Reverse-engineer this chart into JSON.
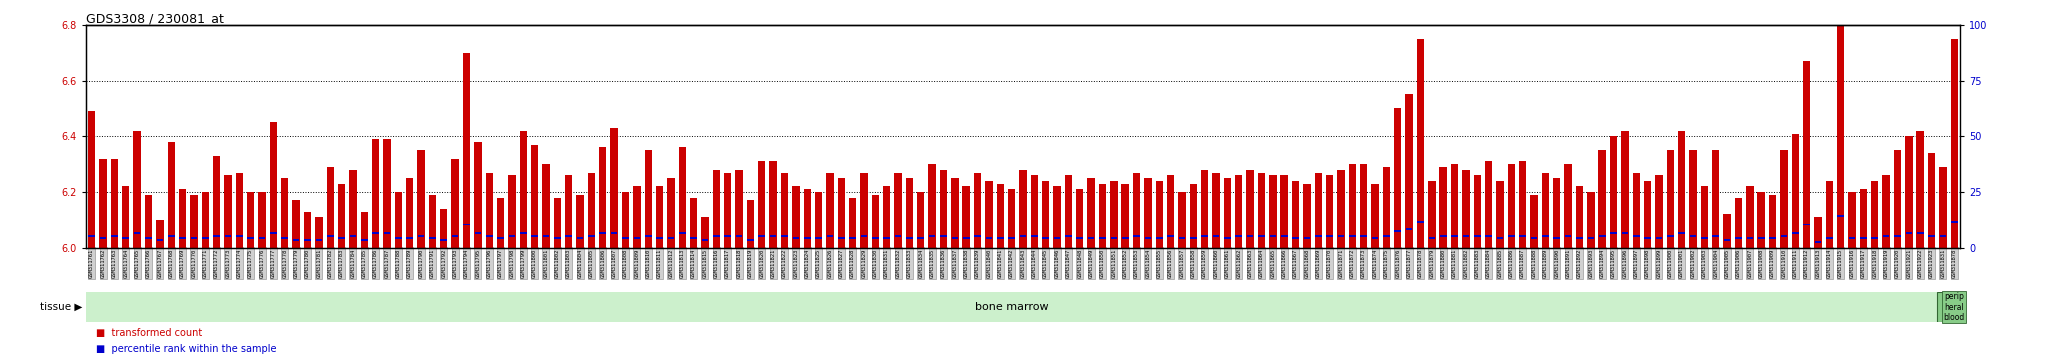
{
  "title": "GDS3308 / 230081_at",
  "ylim_left": [
    6.0,
    6.8
  ],
  "ylim_right": [
    0,
    100
  ],
  "yticks_left": [
    6.0,
    6.2,
    6.4,
    6.6,
    6.8
  ],
  "yticks_right": [
    0,
    25,
    50,
    75,
    100
  ],
  "bar_color": "#cc0000",
  "percentile_color": "#0000cc",
  "label_bg_color": "#d0d0d0",
  "label_edge_color": "#888888",
  "tissue_bm_color": "#ccf0cc",
  "tissue_pb_color": "#88cc88",
  "tissue_pb_edge": "#336633",
  "legend_tc_color": "#cc0000",
  "legend_pr_color": "#0000cc",
  "tissue_label_bm": "bone marrow",
  "tissue_label_pb": "perip\nheral\nblood",
  "tissue_text_label": "tissue",
  "background_color": "#ffffff",
  "grid_color": "#000000",
  "spine_color": "#000000",
  "samples": [
    "GSM311761",
    "GSM311762",
    "GSM311763",
    "GSM311764",
    "GSM311765",
    "GSM311766",
    "GSM311767",
    "GSM311768",
    "GSM311769",
    "GSM311770",
    "GSM311771",
    "GSM311772",
    "GSM311773",
    "GSM311774",
    "GSM311775",
    "GSM311776",
    "GSM311777",
    "GSM311778",
    "GSM311779",
    "GSM311780",
    "GSM311781",
    "GSM311782",
    "GSM311783",
    "GSM311784",
    "GSM311785",
    "GSM311786",
    "GSM311787",
    "GSM311788",
    "GSM311789",
    "GSM311790",
    "GSM311791",
    "GSM311792",
    "GSM311793",
    "GSM311794",
    "GSM311795",
    "GSM311796",
    "GSM311797",
    "GSM311798",
    "GSM311799",
    "GSM311800",
    "GSM311801",
    "GSM311802",
    "GSM311803",
    "GSM311804",
    "GSM311805",
    "GSM311806",
    "GSM311807",
    "GSM311808",
    "GSM311809",
    "GSM311810",
    "GSM311811",
    "GSM311812",
    "GSM311813",
    "GSM311814",
    "GSM311815",
    "GSM311816",
    "GSM311817",
    "GSM311818",
    "GSM311819",
    "GSM311820",
    "GSM311821",
    "GSM311822",
    "GSM311823",
    "GSM311824",
    "GSM311825",
    "GSM311826",
    "GSM311827",
    "GSM311828",
    "GSM311829",
    "GSM311830",
    "GSM311831",
    "GSM311832",
    "GSM311833",
    "GSM311834",
    "GSM311835",
    "GSM311836",
    "GSM311837",
    "GSM311838",
    "GSM311839",
    "GSM311840",
    "GSM311841",
    "GSM311842",
    "GSM311843",
    "GSM311844",
    "GSM311845",
    "GSM311846",
    "GSM311847",
    "GSM311848",
    "GSM311849",
    "GSM311850",
    "GSM311851",
    "GSM311852",
    "GSM311853",
    "GSM311854",
    "GSM311855",
    "GSM311856",
    "GSM311857",
    "GSM311858",
    "GSM311859",
    "GSM311860",
    "GSM311861",
    "GSM311862",
    "GSM311863",
    "GSM311864",
    "GSM311865",
    "GSM311866",
    "GSM311867",
    "GSM311868",
    "GSM311869",
    "GSM311870",
    "GSM311871",
    "GSM311872",
    "GSM311873",
    "GSM311874",
    "GSM311875",
    "GSM311876",
    "GSM311877",
    "GSM311878",
    "GSM311879",
    "GSM311880",
    "GSM311881",
    "GSM311882",
    "GSM311883",
    "GSM311884",
    "GSM311885",
    "GSM311886",
    "GSM311887",
    "GSM311888",
    "GSM311889",
    "GSM311890",
    "GSM311891",
    "GSM311892",
    "GSM311893",
    "GSM311894",
    "GSM311895",
    "GSM311896",
    "GSM311897",
    "GSM311898",
    "GSM311899",
    "GSM311900",
    "GSM311901",
    "GSM311902",
    "GSM311903",
    "GSM311904",
    "GSM311905",
    "GSM311906",
    "GSM311907",
    "GSM311908",
    "GSM311909",
    "GSM311910",
    "GSM311911",
    "GSM311912",
    "GSM311913",
    "GSM311914",
    "GSM311915",
    "GSM311916",
    "GSM311917",
    "GSM311918",
    "GSM311919",
    "GSM311920",
    "GSM311921",
    "GSM311922",
    "GSM311923",
    "GSM311831",
    "GSM311878"
  ],
  "transformed_values": [
    6.49,
    6.32,
    6.32,
    6.22,
    6.42,
    6.19,
    6.1,
    6.38,
    6.21,
    6.19,
    6.2,
    6.33,
    6.26,
    6.27,
    6.2,
    6.2,
    6.45,
    6.25,
    6.17,
    6.13,
    6.11,
    6.29,
    6.23,
    6.28,
    6.13,
    6.39,
    6.39,
    6.2,
    6.25,
    6.35,
    6.19,
    6.14,
    6.32,
    6.7,
    6.38,
    6.27,
    6.18,
    6.26,
    6.42,
    6.37,
    6.3,
    6.18,
    6.26,
    6.19,
    6.27,
    6.36,
    6.43,
    6.2,
    6.22,
    6.35,
    6.22,
    6.25,
    6.36,
    6.18,
    6.11,
    6.28,
    6.27,
    6.28,
    6.17,
    6.31,
    6.31,
    6.27,
    6.22,
    6.21,
    6.2,
    6.27,
    6.25,
    6.18,
    6.27,
    6.19,
    6.22,
    6.27,
    6.25,
    6.2,
    6.3,
    6.28,
    6.25,
    6.22,
    6.27,
    6.24,
    6.23,
    6.21,
    6.28,
    6.26,
    6.24,
    6.22,
    6.26,
    6.21,
    6.25,
    6.23,
    6.24,
    6.23,
    6.27,
    6.25,
    6.24,
    6.26,
    6.2,
    6.23,
    6.28,
    6.27,
    6.25,
    6.26,
    6.28,
    6.27,
    6.26,
    6.26,
    6.24,
    6.23,
    6.27,
    6.26,
    6.28,
    6.3,
    6.3,
    6.23,
    6.29,
    6.5,
    6.55,
    6.75,
    6.24,
    6.29,
    6.3,
    6.28,
    6.26,
    6.31,
    6.24,
    6.3,
    6.31,
    6.19,
    6.27,
    6.25,
    6.3,
    6.22,
    6.2,
    6.35,
    6.4,
    6.42,
    6.27,
    6.24,
    6.26,
    6.35,
    6.42,
    6.35,
    6.22,
    6.35,
    6.12,
    6.18,
    6.22,
    6.2,
    6.19,
    6.35,
    6.41,
    6.67,
    6.11,
    6.24,
    6.9,
    6.2,
    6.21,
    6.24,
    6.26,
    6.35,
    6.4,
    6.42,
    6.34,
    6.29,
    6.75
  ],
  "percentile_values": [
    5,
    4,
    5,
    4,
    6,
    4,
    3,
    5,
    4,
    4,
    4,
    5,
    5,
    5,
    4,
    4,
    6,
    4,
    3,
    3,
    3,
    5,
    4,
    5,
    3,
    6,
    6,
    4,
    4,
    5,
    4,
    3,
    5,
    10,
    6,
    5,
    4,
    5,
    6,
    5,
    5,
    4,
    5,
    4,
    5,
    6,
    6,
    4,
    4,
    5,
    4,
    4,
    6,
    4,
    3,
    5,
    5,
    5,
    3,
    5,
    5,
    5,
    4,
    4,
    4,
    5,
    4,
    4,
    5,
    4,
    4,
    5,
    4,
    4,
    5,
    5,
    4,
    4,
    5,
    4,
    4,
    4,
    5,
    5,
    4,
    4,
    5,
    4,
    4,
    4,
    4,
    4,
    5,
    4,
    4,
    5,
    4,
    4,
    5,
    5,
    4,
    5,
    5,
    5,
    5,
    5,
    4,
    4,
    5,
    5,
    5,
    5,
    5,
    4,
    5,
    7,
    8,
    11,
    4,
    5,
    5,
    5,
    5,
    5,
    4,
    5,
    5,
    4,
    5,
    4,
    5,
    4,
    4,
    5,
    6,
    6,
    5,
    4,
    4,
    5,
    6,
    5,
    4,
    5,
    3,
    4,
    4,
    4,
    4,
    5,
    6,
    10,
    2,
    4,
    14,
    4,
    4,
    4,
    5,
    5,
    6,
    6,
    5,
    5,
    11
  ],
  "bone_marrow_count": 163,
  "n_samples": 165,
  "title_fontsize": 9,
  "tick_fontsize": 7,
  "xtick_fontsize": 4,
  "legend_fontsize": 7
}
